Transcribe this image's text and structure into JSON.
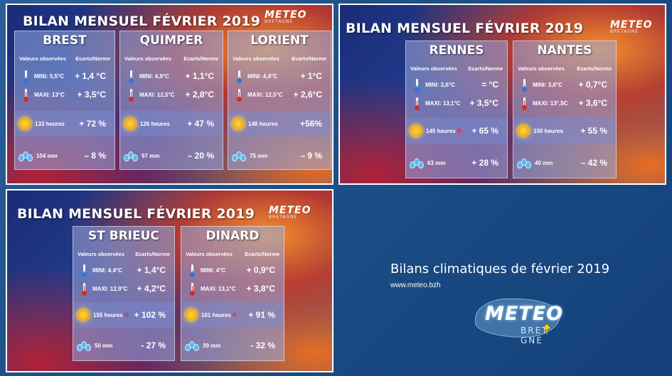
{
  "footer": {
    "subtitle": "Bilans climatiques de février 2019",
    "site": "www.meteo.bzh",
    "logo_main": "METEO",
    "logo_sub": "BRET  GNE"
  },
  "common": {
    "header_left": "Valeurs observées",
    "header_right": "Ecarts/Norme",
    "logo_main": "METEO",
    "logo_sub": "BRETAGNE"
  },
  "cards": [
    {
      "title": "BILAN MENSUEL FÉVRIER 2019",
      "stations": [
        {
          "name": "BREST",
          "mini": "MINI: 5,5°C",
          "mini_ecart": "+ 1,4 °C",
          "maxi": "MAXI: 13°C",
          "maxi_ecart": "+ 3,5°C",
          "sun": "133 heures",
          "sun_record": "",
          "sun_ecart": "+ 72 %",
          "rain": "104 mm",
          "rain_ecart": "– 8 %"
        },
        {
          "name": "QUIMPER",
          "mini": "MINI: 4,9°C",
          "mini_ecart": "+ 1,1°C",
          "maxi": "MAXI: 12,5°C",
          "maxi_ecart": "+ 2,8°C",
          "sun": "126 heures",
          "sun_record": "",
          "sun_ecart": "+ 47 %",
          "rain": "97 mm",
          "rain_ecart": "– 20 %"
        },
        {
          "name": "LORIENT",
          "mini": "MINI: 4,4°C",
          "mini_ecart": "+ 1°C",
          "maxi": "MAXI: 12,5°C",
          "maxi_ecart": "+ 2,6°C",
          "sun": "148 heures",
          "sun_record": "",
          "sun_ecart": "+56%",
          "rain": "75 mm",
          "rain_ecart": "– 9 %"
        }
      ]
    },
    {
      "title": "BILAN MENSUEL FÉVRIER 2019",
      "stations": [
        {
          "name": "RENNES",
          "mini": "MINI: 2,6°C",
          "mini_ecart": "= °C",
          "maxi": "MAXI: 13,1°C",
          "maxi_ecart": "+ 3,5°C",
          "sun": "145 heures",
          "sun_record": "R",
          "sun_ecart": "+ 65 %",
          "rain": "63 mm",
          "rain_ecart": "+ 28 %"
        },
        {
          "name": "NANTES",
          "mini": "MINI: 3,6°C",
          "mini_ecart": "+ 0,7°C",
          "maxi": "MAXI: 13°,5C",
          "maxi_ecart": "+ 3,6°C",
          "sun": "150 heures",
          "sun_record": "",
          "sun_ecart": "+ 55 %",
          "rain": "40 mm",
          "rain_ecart": "– 42 %"
        }
      ]
    },
    {
      "title": "BILAN MENSUEL FÉVRIER 2019",
      "stations": [
        {
          "name": "ST BRIEUC",
          "mini": "MINI: 4,4°C",
          "mini_ecart": "+ 1,4°C",
          "maxi": "MAXI: 12,9°C",
          "maxi_ecart": "+ 4,2°C",
          "sun": "155 heures",
          "sun_record": "R",
          "sun_ecart": "+ 102 %",
          "rain": "50 mm",
          "rain_ecart": "- 27 %"
        },
        {
          "name": "DINARD",
          "mini": "MINI: 4°C",
          "mini_ecart": "+ 0,9°C",
          "maxi": "MAXI: 13,1°C",
          "maxi_ecart": "+ 3,8°C",
          "sun": "161 heures",
          "sun_record": "R",
          "sun_ecart": "+ 91 %",
          "rain": "39 mm",
          "rain_ecart": "- 32 %"
        }
      ]
    }
  ]
}
